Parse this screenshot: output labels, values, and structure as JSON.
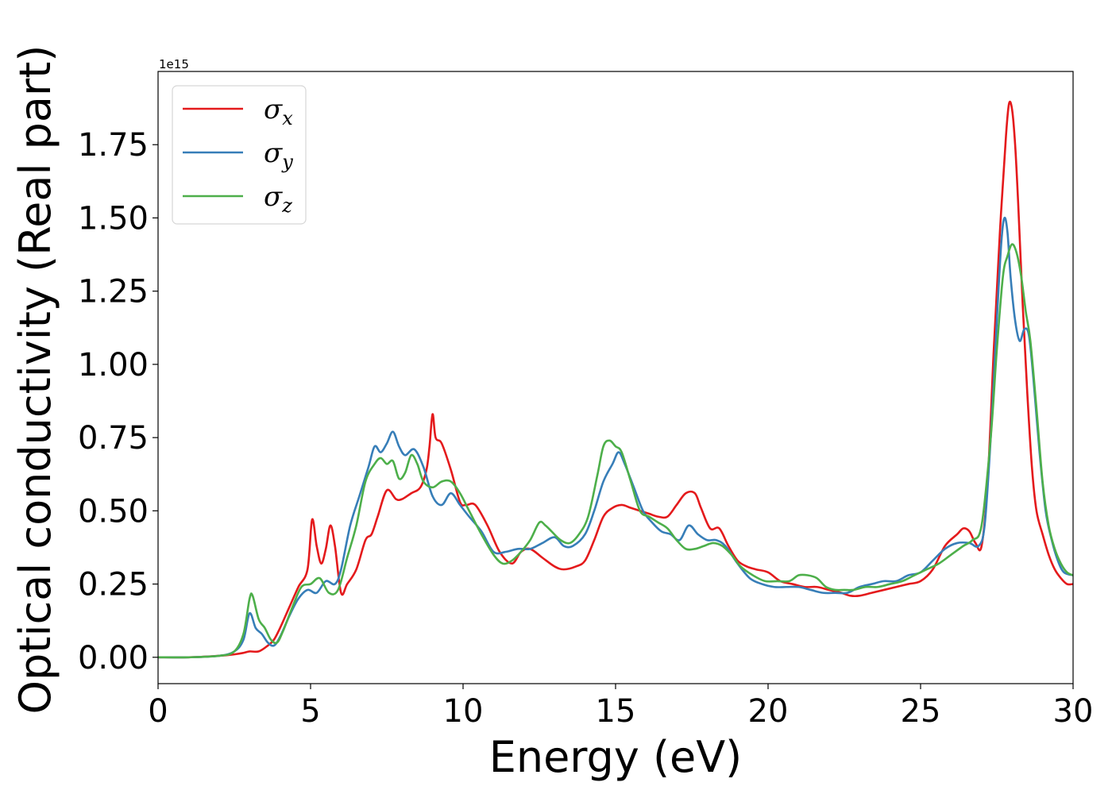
{
  "chart_data": {
    "type": "line",
    "xlabel": "Energy (eV)",
    "ylabel": "Optical conductivity (Real part)",
    "y_offset_text": "1e15",
    "xlim": [
      0,
      30
    ],
    "ylim": [
      -0.09,
      2.0
    ],
    "x_ticks": [
      0,
      5,
      10,
      15,
      20,
      25,
      30
    ],
    "x_tick_labels": [
      "0",
      "5",
      "10",
      "15",
      "20",
      "25",
      "30"
    ],
    "y_ticks": [
      0.0,
      0.25,
      0.5,
      0.75,
      1.0,
      1.25,
      1.5,
      1.75
    ],
    "y_tick_labels": [
      "0.00",
      "0.25",
      "0.50",
      "0.75",
      "1.00",
      "1.25",
      "1.50",
      "1.75"
    ],
    "grid": false,
    "legend_position": "upper-left",
    "series": [
      {
        "name": "σ",
        "subscript": "x",
        "color": "#e41a1c",
        "x": [
          0,
          1,
          2,
          2.5,
          2.8,
          3.0,
          3.3,
          3.6,
          3.8,
          4.0,
          4.3,
          4.6,
          4.9,
          5.05,
          5.2,
          5.35,
          5.5,
          5.65,
          5.8,
          6.0,
          6.2,
          6.5,
          6.8,
          7.0,
          7.2,
          7.5,
          7.8,
          8.0,
          8.3,
          8.6,
          8.8,
          8.9,
          9.0,
          9.1,
          9.3,
          9.6,
          9.9,
          10.1,
          10.4,
          10.8,
          11.2,
          11.6,
          11.9,
          12.2,
          12.6,
          13.0,
          13.3,
          13.7,
          14.0,
          14.3,
          14.6,
          14.9,
          15.2,
          15.5,
          15.8,
          16.1,
          16.4,
          16.7,
          17.0,
          17.3,
          17.6,
          17.8,
          18.1,
          18.4,
          18.7,
          19.0,
          19.3,
          19.6,
          20.0,
          20.4,
          20.8,
          21.2,
          21.6,
          22.0,
          22.4,
          22.7,
          23.0,
          23.4,
          23.8,
          24.2,
          24.6,
          25.0,
          25.4,
          25.8,
          26.2,
          26.4,
          26.6,
          26.8,
          27.0,
          27.2,
          27.4,
          27.6,
          27.8,
          27.9,
          28.0,
          28.1,
          28.2,
          28.35,
          28.5,
          28.65,
          28.8,
          29.0,
          29.2,
          29.4,
          29.6,
          29.8,
          30.0
        ],
        "y": [
          0,
          0,
          0.005,
          0.01,
          0.015,
          0.02,
          0.02,
          0.04,
          0.06,
          0.1,
          0.17,
          0.24,
          0.3,
          0.47,
          0.38,
          0.32,
          0.37,
          0.45,
          0.38,
          0.22,
          0.25,
          0.3,
          0.4,
          0.42,
          0.48,
          0.57,
          0.54,
          0.54,
          0.56,
          0.58,
          0.64,
          0.72,
          0.83,
          0.75,
          0.73,
          0.64,
          0.53,
          0.52,
          0.52,
          0.45,
          0.36,
          0.32,
          0.36,
          0.37,
          0.34,
          0.31,
          0.3,
          0.31,
          0.33,
          0.4,
          0.48,
          0.51,
          0.52,
          0.51,
          0.5,
          0.49,
          0.48,
          0.48,
          0.52,
          0.56,
          0.56,
          0.51,
          0.44,
          0.44,
          0.38,
          0.33,
          0.31,
          0.3,
          0.29,
          0.26,
          0.25,
          0.24,
          0.24,
          0.23,
          0.22,
          0.21,
          0.21,
          0.22,
          0.23,
          0.24,
          0.25,
          0.26,
          0.3,
          0.38,
          0.42,
          0.44,
          0.43,
          0.39,
          0.38,
          0.6,
          1.05,
          1.45,
          1.78,
          1.89,
          1.87,
          1.75,
          1.55,
          1.2,
          0.9,
          0.65,
          0.5,
          0.42,
          0.35,
          0.3,
          0.27,
          0.25,
          0.25
        ]
      },
      {
        "name": "σ",
        "subscript": "y",
        "color": "#377eb8",
        "x": [
          0,
          1,
          2,
          2.5,
          2.8,
          3.0,
          3.2,
          3.4,
          3.6,
          3.8,
          4.0,
          4.3,
          4.6,
          4.9,
          5.2,
          5.5,
          5.8,
          6.0,
          6.3,
          6.6,
          6.9,
          7.1,
          7.3,
          7.5,
          7.7,
          7.9,
          8.1,
          8.4,
          8.7,
          9.0,
          9.3,
          9.6,
          9.9,
          10.2,
          10.6,
          11.0,
          11.4,
          11.8,
          12.2,
          12.6,
          13.0,
          13.3,
          13.6,
          14.0,
          14.3,
          14.6,
          14.9,
          15.1,
          15.3,
          15.6,
          15.9,
          16.2,
          16.5,
          16.8,
          17.1,
          17.4,
          17.7,
          18.0,
          18.3,
          18.6,
          19.0,
          19.4,
          19.8,
          20.2,
          20.6,
          21.0,
          21.4,
          21.8,
          22.2,
          22.6,
          23.0,
          23.4,
          23.8,
          24.2,
          24.6,
          25.0,
          25.4,
          25.8,
          26.2,
          26.6,
          26.9,
          27.1,
          27.3,
          27.5,
          27.65,
          27.75,
          27.85,
          27.95,
          28.1,
          28.25,
          28.4,
          28.55,
          28.7,
          28.9,
          29.1,
          29.3,
          29.5,
          29.7,
          30.0
        ],
        "y": [
          0,
          0,
          0.005,
          0.02,
          0.06,
          0.15,
          0.1,
          0.08,
          0.05,
          0.04,
          0.07,
          0.14,
          0.2,
          0.23,
          0.22,
          0.26,
          0.25,
          0.3,
          0.45,
          0.55,
          0.65,
          0.72,
          0.7,
          0.73,
          0.77,
          0.72,
          0.69,
          0.71,
          0.65,
          0.55,
          0.52,
          0.56,
          0.52,
          0.48,
          0.43,
          0.36,
          0.36,
          0.37,
          0.37,
          0.39,
          0.41,
          0.38,
          0.38,
          0.42,
          0.5,
          0.6,
          0.66,
          0.7,
          0.66,
          0.58,
          0.5,
          0.46,
          0.43,
          0.42,
          0.4,
          0.45,
          0.42,
          0.4,
          0.4,
          0.38,
          0.32,
          0.27,
          0.25,
          0.24,
          0.24,
          0.24,
          0.23,
          0.22,
          0.22,
          0.22,
          0.24,
          0.25,
          0.26,
          0.26,
          0.28,
          0.29,
          0.33,
          0.37,
          0.39,
          0.39,
          0.38,
          0.45,
          0.75,
          1.15,
          1.42,
          1.5,
          1.45,
          1.3,
          1.15,
          1.08,
          1.12,
          1.1,
          0.95,
          0.7,
          0.5,
          0.4,
          0.33,
          0.29,
          0.28
        ]
      },
      {
        "name": "σ",
        "subscript": "z",
        "color": "#4daf4a",
        "x": [
          0,
          1,
          2,
          2.5,
          2.8,
          3.0,
          3.1,
          3.3,
          3.5,
          3.7,
          3.9,
          4.1,
          4.4,
          4.7,
          5.0,
          5.3,
          5.6,
          5.9,
          6.2,
          6.5,
          6.8,
          7.1,
          7.3,
          7.5,
          7.7,
          7.9,
          8.1,
          8.3,
          8.5,
          8.7,
          9.0,
          9.3,
          9.6,
          9.9,
          10.2,
          10.6,
          11.0,
          11.3,
          11.6,
          11.9,
          12.2,
          12.5,
          12.7,
          12.9,
          13.2,
          13.5,
          13.8,
          14.1,
          14.4,
          14.6,
          14.8,
          15.0,
          15.2,
          15.5,
          15.8,
          16.1,
          16.4,
          16.7,
          17.0,
          17.3,
          17.6,
          17.9,
          18.2,
          18.5,
          18.8,
          19.1,
          19.5,
          19.9,
          20.3,
          20.7,
          21.0,
          21.3,
          21.6,
          21.9,
          22.2,
          22.5,
          22.8,
          23.2,
          23.6,
          24.0,
          24.4,
          24.8,
          25.2,
          25.6,
          26.0,
          26.4,
          26.7,
          27.0,
          27.3,
          27.5,
          27.7,
          27.85,
          28.0,
          28.15,
          28.3,
          28.45,
          28.6,
          28.8,
          29.0,
          29.2,
          29.4,
          29.6,
          29.8,
          30.0
        ],
        "y": [
          0,
          0,
          0.005,
          0.02,
          0.08,
          0.2,
          0.21,
          0.13,
          0.1,
          0.06,
          0.05,
          0.09,
          0.17,
          0.24,
          0.25,
          0.27,
          0.22,
          0.23,
          0.34,
          0.45,
          0.6,
          0.66,
          0.68,
          0.66,
          0.67,
          0.61,
          0.63,
          0.69,
          0.66,
          0.6,
          0.58,
          0.6,
          0.6,
          0.56,
          0.5,
          0.42,
          0.35,
          0.32,
          0.33,
          0.36,
          0.4,
          0.46,
          0.45,
          0.43,
          0.4,
          0.39,
          0.42,
          0.48,
          0.62,
          0.72,
          0.74,
          0.72,
          0.7,
          0.6,
          0.5,
          0.48,
          0.46,
          0.44,
          0.4,
          0.37,
          0.37,
          0.38,
          0.39,
          0.38,
          0.35,
          0.31,
          0.28,
          0.26,
          0.26,
          0.26,
          0.28,
          0.28,
          0.27,
          0.24,
          0.23,
          0.23,
          0.23,
          0.24,
          0.24,
          0.25,
          0.26,
          0.28,
          0.3,
          0.32,
          0.35,
          0.38,
          0.4,
          0.45,
          0.75,
          1.05,
          1.3,
          1.37,
          1.41,
          1.38,
          1.3,
          1.18,
          1.08,
          0.85,
          0.6,
          0.45,
          0.37,
          0.32,
          0.29,
          0.28
        ]
      }
    ]
  }
}
